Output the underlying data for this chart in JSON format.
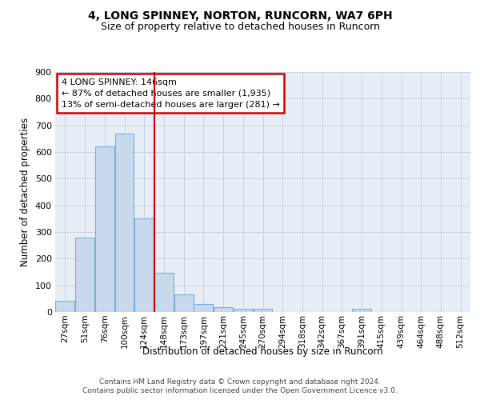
{
  "title1": "4, LONG SPINNEY, NORTON, RUNCORN, WA7 6PH",
  "title2": "Size of property relative to detached houses in Runcorn",
  "xlabel": "Distribution of detached houses by size in Runcorn",
  "ylabel": "Number of detached properties",
  "footer1": "Contains HM Land Registry data © Crown copyright and database right 2024.",
  "footer2": "Contains public sector information licensed under the Open Government Licence v3.0.",
  "bar_labels": [
    "27sqm",
    "51sqm",
    "76sqm",
    "100sqm",
    "124sqm",
    "148sqm",
    "173sqm",
    "197sqm",
    "221sqm",
    "245sqm",
    "270sqm",
    "294sqm",
    "318sqm",
    "342sqm",
    "367sqm",
    "391sqm",
    "415sqm",
    "439sqm",
    "464sqm",
    "488sqm",
    "512sqm"
  ],
  "bar_values": [
    42,
    280,
    620,
    670,
    350,
    148,
    65,
    30,
    18,
    12,
    12,
    0,
    0,
    0,
    0,
    12,
    0,
    0,
    0,
    0,
    0
  ],
  "bar_color": "#c8d9ee",
  "bar_edge_color": "#7bacd6",
  "grid_color": "#c8d2e0",
  "vline_color": "#cc0000",
  "annotation_line1": "4 LONG SPINNEY: 146sqm",
  "annotation_line2": "← 87% of detached houses are smaller (1,935)",
  "annotation_line3": "13% of semi-detached houses are larger (281) →",
  "annotation_box_color": "white",
  "annotation_box_edge_color": "#cc0000",
  "ylim": [
    0,
    900
  ],
  "yticks": [
    0,
    100,
    200,
    300,
    400,
    500,
    600,
    700,
    800,
    900
  ],
  "bg_color": "#e8eef6",
  "title1_fontsize": 10,
  "title2_fontsize": 9
}
